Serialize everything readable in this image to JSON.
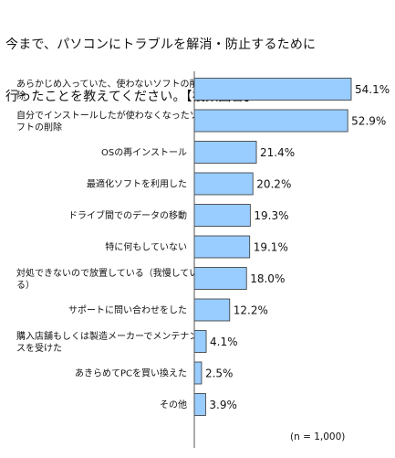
{
  "title_lines": [
    "今まで、パソコンにトラブルを解消・防止するために",
    "行ったことを教えてください。【複数回答】"
  ],
  "sample_note": "(n = 1,000)",
  "chart_data": {
    "type": "bar",
    "orientation": "horizontal",
    "title": "今まで、パソコンにトラブルを解消・防止するために行ったことを教えてください。【複数回答】",
    "categories": [
      [
        "あらかじめ入っていた、使わないソフトの削",
        "除"
      ],
      [
        "自分でインストールしたが使わなくなったソ",
        "フトの削除"
      ],
      [
        "OSの再インストール"
      ],
      [
        "最適化ソフトを利用した"
      ],
      [
        "ドライブ間でのデータの移動"
      ],
      [
        "特に何もしていない"
      ],
      [
        "対処できないので放置している（我慢してい",
        "る）"
      ],
      [
        "サポートに問い合わせをした"
      ],
      [
        "購入店舗もしくは製造メーカーでメンテナン",
        "スを受けた"
      ],
      [
        "あきらめてPCを買い換えた"
      ],
      [
        "その他"
      ]
    ],
    "values": [
      54.1,
      52.9,
      21.4,
      20.2,
      19.3,
      19.1,
      18.0,
      12.2,
      4.1,
      2.5,
      3.9
    ],
    "value_labels": [
      "54.1%",
      "52.9%",
      "21.4%",
      "20.2%",
      "19.3%",
      "19.1%",
      "18.0%",
      "12.2%",
      "4.1%",
      "2.5%",
      "3.9%"
    ],
    "bar_color": "#99CCFF",
    "bar_border": "#333333",
    "xlim": [
      0,
      60
    ],
    "grid": false,
    "legend": "none"
  }
}
